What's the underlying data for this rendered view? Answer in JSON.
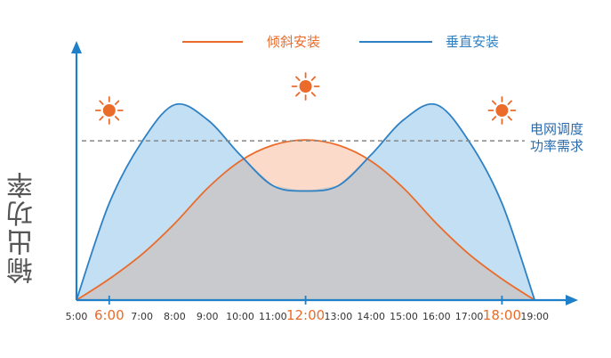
{
  "chart_data": {
    "type": "area",
    "ylabel": "输出功率",
    "x_ticks": [
      "5:00",
      "6:00",
      "7:00",
      "8:00",
      "9:00",
      "10:00",
      "11:00",
      "12:00",
      "13:00",
      "14:00",
      "15:00",
      "16:00",
      "17:00",
      "18:00",
      "19:00"
    ],
    "highlighted_ticks": [
      "6:00",
      "12:00",
      "18:00"
    ],
    "series": [
      {
        "name": "倾斜安装",
        "color": "#ea6b2a",
        "fill": "#fbd6c3",
        "x": [
          "5:00",
          "6:00",
          "7:00",
          "8:00",
          "9:00",
          "10:00",
          "11:00",
          "12:00",
          "13:00",
          "14:00",
          "15:00",
          "16:00",
          "17:00",
          "18:00",
          "19:00"
        ],
        "y": [
          0,
          24,
          52,
          87,
          127,
          158,
          176,
          182,
          176,
          158,
          127,
          87,
          52,
          24,
          0
        ]
      },
      {
        "name": "垂直安装",
        "color": "#2f81c4",
        "fill": "#bcdcf2",
        "x": [
          "5:00",
          "6:00",
          "7:00",
          "8:00",
          "9:00",
          "10:00",
          "11:00",
          "12:00",
          "13:00",
          "14:00",
          "15:00",
          "16:00",
          "17:00",
          "18:00",
          "19:00"
        ],
        "y": [
          0,
          110,
          180,
          222,
          205,
          165,
          130,
          124,
          130,
          165,
          205,
          222,
          180,
          110,
          0
        ]
      }
    ],
    "reference_line": {
      "label_line1": "电网调度",
      "label_line2": "功率需求",
      "y": 181
    },
    "sun_icons": [
      "6:00",
      "12:00",
      "18:00"
    ],
    "ylim": [
      0,
      260
    ]
  }
}
